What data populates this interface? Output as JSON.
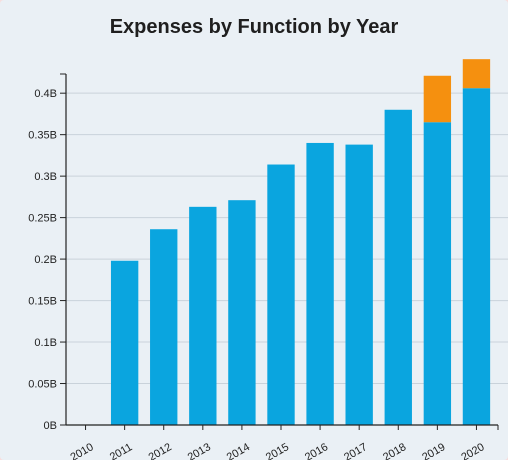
{
  "chart_data": {
    "type": "bar",
    "stacked": true,
    "title": "Expenses by Function by Year",
    "xlabel": "",
    "ylabel": "",
    "categories": [
      "2010",
      "2011",
      "2012",
      "2013",
      "2014",
      "2015",
      "2016",
      "2017",
      "2018",
      "2019",
      "2020"
    ],
    "series": [
      {
        "color": "#0aa5df",
        "values": [
          0,
          0.198,
          0.236,
          0.263,
          0.271,
          0.314,
          0.34,
          0.338,
          0.38,
          0.365,
          0.406
        ]
      },
      {
        "color": "#f5900f",
        "values": [
          0,
          0,
          0,
          0,
          0,
          0,
          0,
          0,
          0,
          0.056,
          0.035
        ]
      }
    ],
    "yticks": [
      "0B",
      "0.05B",
      "0.1B",
      "0.15B",
      "0.2B",
      "0.25B",
      "0.3B",
      "0.35B",
      "0.4B"
    ],
    "ytick_values": [
      0,
      0.05,
      0.1,
      0.15,
      0.2,
      0.25,
      0.3,
      0.35,
      0.4
    ],
    "ylim": [
      0,
      0.44
    ],
    "grid": true,
    "legend": "none"
  }
}
